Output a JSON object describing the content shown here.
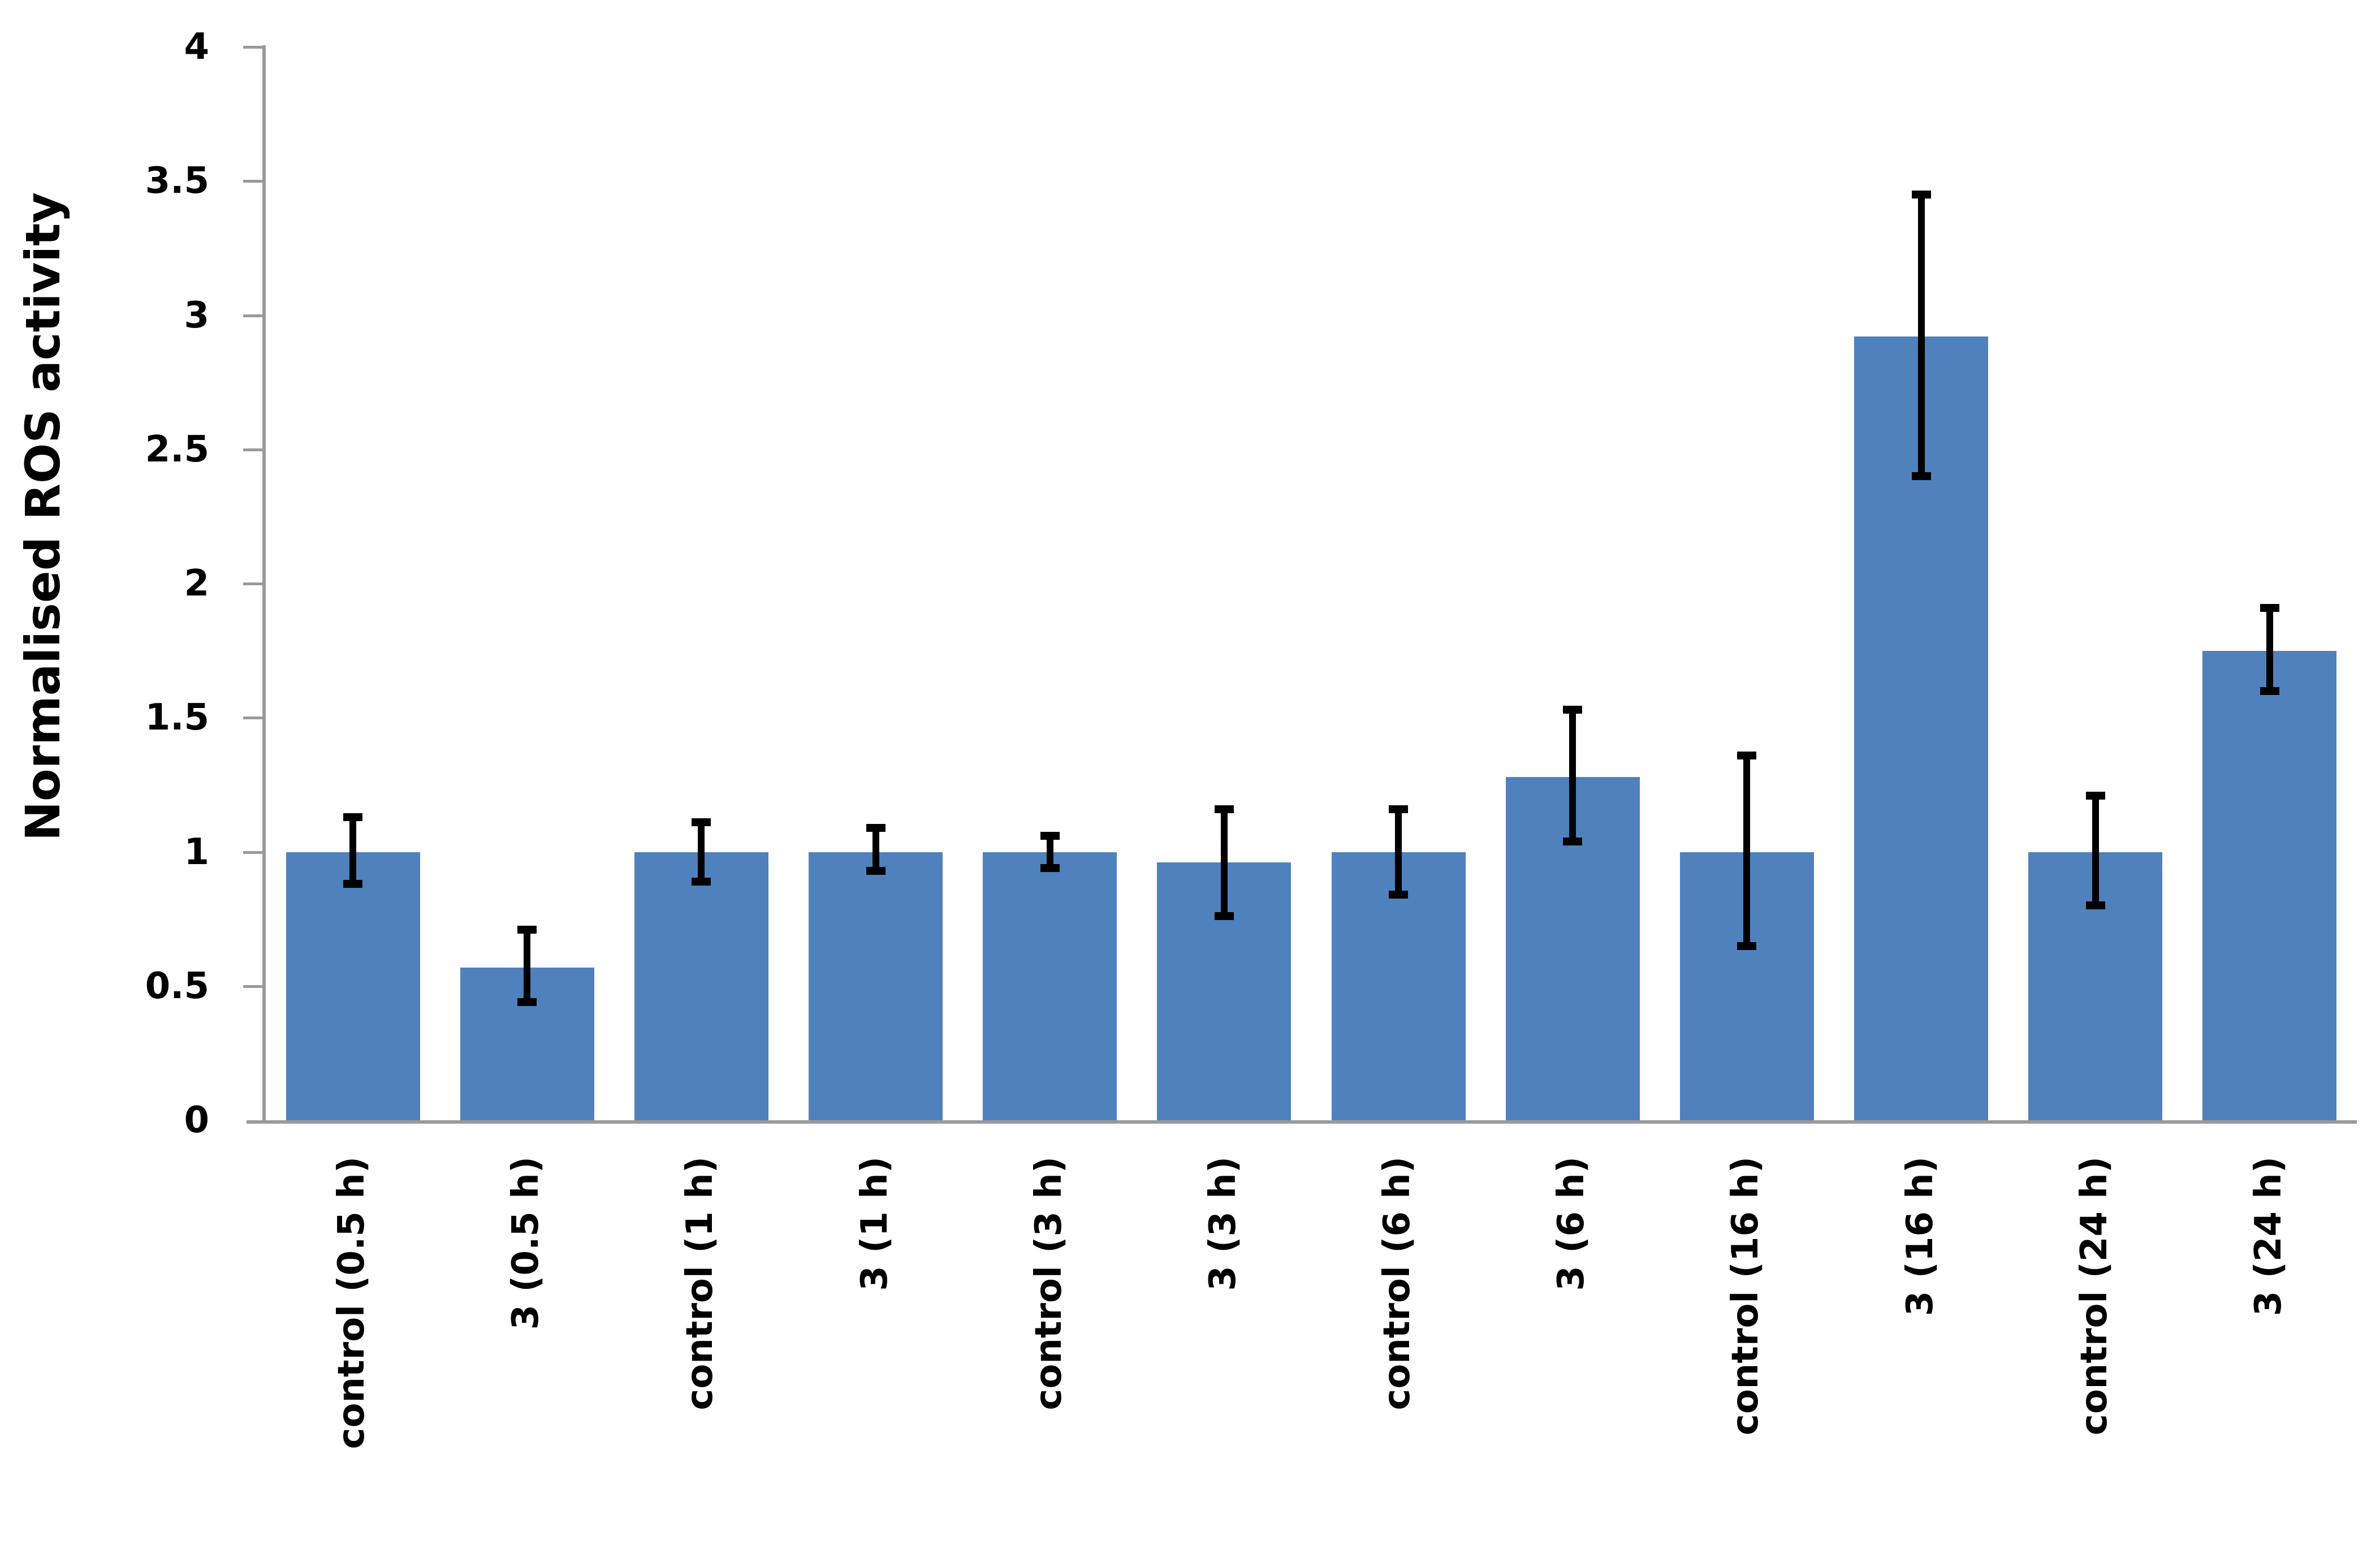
{
  "chart_data": {
    "type": "bar",
    "title": "",
    "xlabel": "",
    "ylabel": "Normalised ROS activity",
    "ylim": [
      0,
      4
    ],
    "ytick_step": 0.5,
    "ytick_labels": [
      "0",
      "0.5",
      "1",
      "1.5",
      "2",
      "2.5",
      "3",
      "3.5",
      "4"
    ],
    "grid": false,
    "legend_position": "none",
    "bar_color": "#4f81bd",
    "error_bar_color": "#000000",
    "axis_color": "#9a9a9a",
    "categories": [
      "control (0.5 h)",
      "3 (0.5 h)",
      "control (1 h)",
      "3 (1 h)",
      "control (3 h)",
      "3 (3 h)",
      "control (6 h)",
      "3 (6 h)",
      "control (16 h)",
      "3 (16 h)",
      "control (24 h)",
      "3 (24 h)"
    ],
    "values": [
      1.0,
      0.57,
      1.0,
      1.0,
      1.0,
      0.96,
      1.0,
      1.28,
      1.0,
      2.92,
      1.0,
      1.75
    ],
    "error_upper_abs": [
      1.13,
      0.71,
      1.11,
      1.09,
      1.06,
      1.16,
      1.16,
      1.53,
      1.36,
      3.45,
      1.21,
      1.91
    ],
    "error_lower_abs": [
      0.88,
      0.44,
      0.89,
      0.93,
      0.94,
      0.76,
      0.84,
      1.04,
      0.65,
      2.4,
      0.8,
      1.6
    ]
  }
}
